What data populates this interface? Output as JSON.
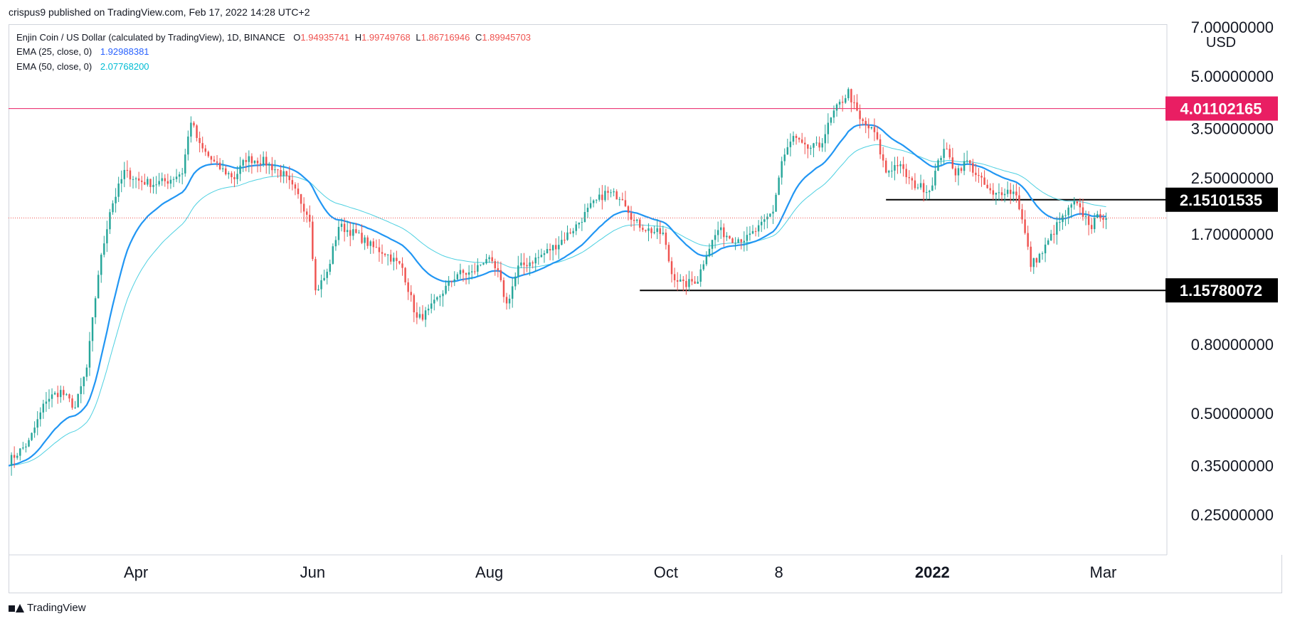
{
  "header": {
    "publish_line": "crispus9 published on TradingView.com, Feb 17, 2022 14:28 UTC+2"
  },
  "legend": {
    "symbol": "Enjin Coin / US Dollar (calculated by TradingView), 1D, BINANCE",
    "ohlc": {
      "o_label": "O",
      "o": "1.94935741",
      "h_label": "H",
      "h": "1.99749768",
      "l_label": "L",
      "l": "1.86716946",
      "c_label": "C",
      "c": "1.89945703"
    },
    "ema25": {
      "label": "EMA (25, close, 0)",
      "value": "1.92988381"
    },
    "ema50": {
      "label": "EMA (50, close, 0)",
      "value": "2.07768200"
    }
  },
  "footer": {
    "brand": "TradingView"
  },
  "colors": {
    "up": "#26a69a",
    "down": "#ef5350",
    "ema25": "#2196f3",
    "ema50": "#4dd0e1",
    "resistance": "#e91e63",
    "support": "#000000",
    "last_price": "#ef5350"
  },
  "chart_data": {
    "type": "candlestick",
    "scale": "log",
    "currency": "USD",
    "ylim": [
      0.19,
      7.0
    ],
    "y_ticks": [
      "7.00000000",
      "5.00000000",
      "3.50000000",
      "2.50000000",
      "1.70000000",
      "0.80000000",
      "0.50000000",
      "0.35000000",
      "0.25000000"
    ],
    "x_ticks": [
      {
        "label": "Apr",
        "day": 44,
        "bold": false
      },
      {
        "label": "Jun",
        "day": 105,
        "bold": false
      },
      {
        "label": "Aug",
        "day": 166,
        "bold": false
      },
      {
        "label": "Oct",
        "day": 227,
        "bold": false
      },
      {
        "label": "8",
        "day": 266,
        "bold": false
      },
      {
        "label": "2022",
        "day": 319,
        "bold": true
      },
      {
        "label": "Mar",
        "day": 378,
        "bold": false
      }
    ],
    "x_range": [
      0,
      400
    ],
    "horizontal_levels": [
      {
        "value": 4.01102165,
        "label": "4.01102165",
        "color": "#e91e63",
        "from_day": 0,
        "to_day": 400,
        "badge": "red"
      },
      {
        "value": 2.15101535,
        "label": "2.15101535",
        "color": "#000000",
        "from_day": 303,
        "to_day": 400,
        "badge": "black"
      },
      {
        "value": 1.15780072,
        "label": "1.15780072",
        "color": "#000000",
        "from_day": 218,
        "to_day": 400,
        "badge": "black"
      }
    ],
    "last_price": 1.89945703,
    "price_anchors": [
      [
        0,
        0.36
      ],
      [
        7,
        0.41
      ],
      [
        13,
        0.55
      ],
      [
        18,
        0.58
      ],
      [
        23,
        0.52
      ],
      [
        27,
        0.68
      ],
      [
        31,
        1.3
      ],
      [
        35,
        2.0
      ],
      [
        40,
        2.6
      ],
      [
        45,
        2.45
      ],
      [
        50,
        2.4
      ],
      [
        55,
        2.45
      ],
      [
        60,
        2.6
      ],
      [
        63,
        3.7
      ],
      [
        66,
        3.1
      ],
      [
        72,
        2.7
      ],
      [
        78,
        2.5
      ],
      [
        82,
        2.85
      ],
      [
        88,
        2.8
      ],
      [
        95,
        2.55
      ],
      [
        100,
        2.2
      ],
      [
        104,
        1.9
      ],
      [
        106,
        1.15
      ],
      [
        110,
        1.3
      ],
      [
        114,
        1.8
      ],
      [
        120,
        1.7
      ],
      [
        126,
        1.55
      ],
      [
        130,
        1.5
      ],
      [
        136,
        1.35
      ],
      [
        141,
        0.95
      ],
      [
        145,
        1.0
      ],
      [
        150,
        1.15
      ],
      [
        155,
        1.3
      ],
      [
        160,
        1.3
      ],
      [
        165,
        1.45
      ],
      [
        169,
        1.3
      ],
      [
        172,
        1.05
      ],
      [
        176,
        1.35
      ],
      [
        183,
        1.45
      ],
      [
        190,
        1.6
      ],
      [
        196,
        1.8
      ],
      [
        201,
        2.05
      ],
      [
        206,
        2.25
      ],
      [
        212,
        2.2
      ],
      [
        216,
        1.85
      ],
      [
        221,
        1.75
      ],
      [
        226,
        1.7
      ],
      [
        229,
        1.3
      ],
      [
        233,
        1.2
      ],
      [
        238,
        1.25
      ],
      [
        241,
        1.5
      ],
      [
        245,
        1.75
      ],
      [
        250,
        1.65
      ],
      [
        255,
        1.65
      ],
      [
        260,
        1.8
      ],
      [
        264,
        2.0
      ],
      [
        267,
        2.8
      ],
      [
        271,
        3.3
      ],
      [
        275,
        3.05
      ],
      [
        280,
        3.1
      ],
      [
        285,
        3.9
      ],
      [
        290,
        4.5
      ],
      [
        294,
        3.7
      ],
      [
        299,
        3.4
      ],
      [
        303,
        2.6
      ],
      [
        307,
        2.75
      ],
      [
        312,
        2.4
      ],
      [
        318,
        2.3
      ],
      [
        323,
        3.1
      ],
      [
        327,
        2.6
      ],
      [
        331,
        2.8
      ],
      [
        335,
        2.5
      ],
      [
        340,
        2.2
      ],
      [
        344,
        2.3
      ],
      [
        348,
        2.25
      ],
      [
        351,
        1.7
      ],
      [
        353,
        1.38
      ],
      [
        357,
        1.5
      ],
      [
        362,
        1.8
      ],
      [
        368,
        2.1
      ],
      [
        371,
        1.95
      ],
      [
        374,
        1.8
      ],
      [
        377,
        1.95
      ],
      [
        379,
        1.899
      ]
    ]
  }
}
